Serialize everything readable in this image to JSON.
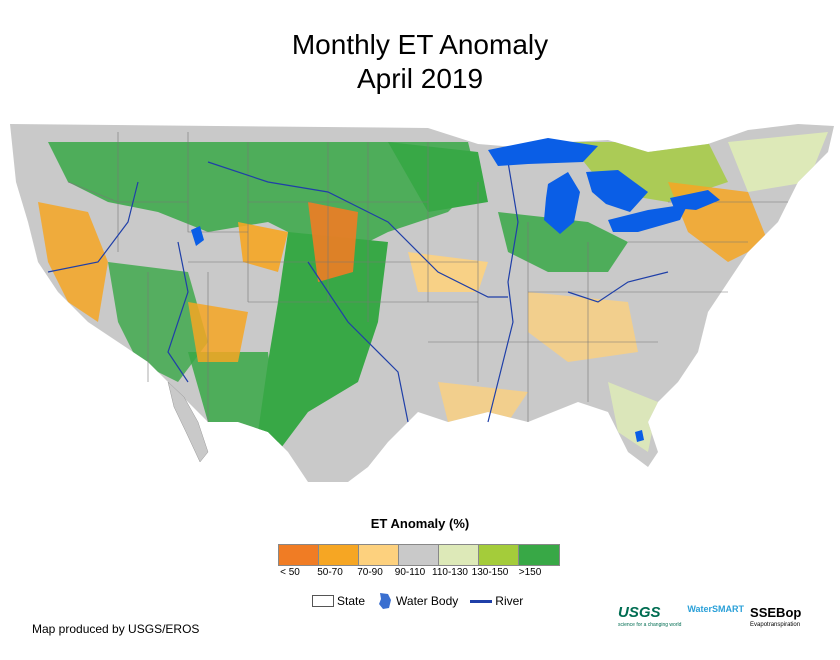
{
  "title": {
    "line1": "Monthly ET Anomaly",
    "line2": "April 2019"
  },
  "legend": {
    "title": "ET Anomaly (%)",
    "classes": [
      {
        "label": "< 50",
        "color": "#f07c24"
      },
      {
        "label": "50-70",
        "color": "#f6a623"
      },
      {
        "label": "70-90",
        "color": "#fdd17e"
      },
      {
        "label": "90-110",
        "color": "#c9c9c9"
      },
      {
        "label": "110-130",
        "color": "#dde9b8"
      },
      {
        "label": "130-150",
        "color": "#a4cc3a"
      },
      {
        "label": ">150",
        "color": "#38a846"
      }
    ]
  },
  "symbols": {
    "state": "State",
    "water_body": "Water Body",
    "river": "River"
  },
  "credit": "Map produced by USGS/EROS",
  "logos": {
    "usgs": "USGS",
    "usgs_tagline": "science for a changing world",
    "water_smart": "WaterSMART",
    "ssebop": "SSEBop",
    "ssebop_sub": "Evapotranspiration"
  },
  "colors": {
    "water": "#0a5ee6",
    "river": "#1f3fa8",
    "state_border": "#777777"
  }
}
